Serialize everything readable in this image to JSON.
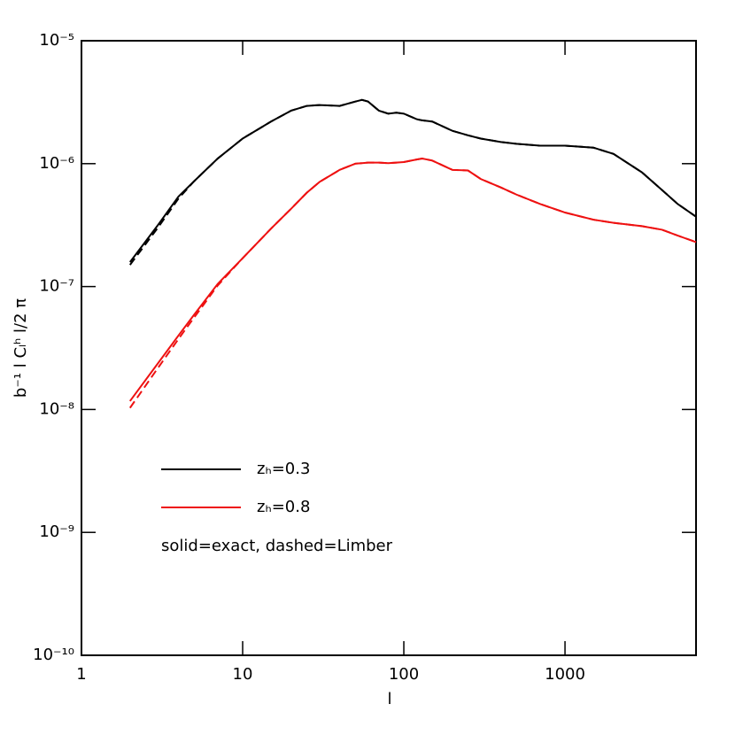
{
  "chart_data": {
    "type": "line",
    "x_label": "l",
    "y_label": "b⁻¹ l Cₗʰ l/2 π",
    "annotation": "solid=exact, dashed=Limber",
    "log_x": true,
    "log_y": true,
    "xlim": [
      1,
      6500
    ],
    "ylim": [
      1e-10,
      1e-05
    ],
    "xticks": [
      1,
      10,
      100,
      1000
    ],
    "yticks": [
      {
        "value": 1e-10,
        "label": "10⁻¹⁰"
      },
      {
        "value": 1e-09,
        "label": "10⁻⁹"
      },
      {
        "value": 1e-08,
        "label": "10⁻⁸"
      },
      {
        "value": 1e-07,
        "label": "10⁻⁷"
      },
      {
        "value": 1e-06,
        "label": "10⁻⁶"
      },
      {
        "value": 1e-05,
        "label": "10⁻⁵"
      }
    ],
    "x": [
      2,
      3,
      4,
      5,
      7,
      10,
      15,
      20,
      25,
      30,
      40,
      50,
      55,
      60,
      70,
      80,
      90,
      100,
      120,
      130,
      150,
      200,
      250,
      300,
      400,
      500,
      700,
      1000,
      1500,
      2000,
      3000,
      4000,
      5000,
      6500
    ],
    "series": [
      {
        "name": "zₕ=0.3",
        "color": "#000000",
        "values": [
          1.58e-07,
          3.2e-07,
          5.4e-07,
          7.2e-07,
          1.1e-06,
          1.6e-06,
          2.2e-06,
          2.7e-06,
          2.95e-06,
          3e-06,
          2.95e-06,
          3.2e-06,
          3.3e-06,
          3.2e-06,
          2.7e-06,
          2.55e-06,
          2.6e-06,
          2.55e-06,
          2.3e-06,
          2.25e-06,
          2.2e-06,
          1.85e-06,
          1.7e-06,
          1.6e-06,
          1.5e-06,
          1.45e-06,
          1.4e-06,
          1.4e-06,
          1.35e-06,
          1.2e-06,
          8.5e-07,
          6.1e-07,
          4.7e-07,
          3.7e-07
        ],
        "limber_values": [
          1.5e-07,
          3.05e-07,
          5.2e-07,
          7.2e-07,
          1.1e-06,
          1.6e-06,
          2.2e-06,
          2.7e-06,
          2.95e-06,
          3e-06,
          2.95e-06,
          3.2e-06,
          3.3e-06,
          3.2e-06,
          2.7e-06,
          2.55e-06,
          2.6e-06,
          2.55e-06,
          2.3e-06,
          2.25e-06,
          2.2e-06,
          1.85e-06,
          1.7e-06,
          1.6e-06,
          1.5e-06,
          1.45e-06,
          1.4e-06,
          1.4e-06,
          1.35e-06,
          1.2e-06,
          8.5e-07,
          6.1e-07,
          4.7e-07,
          3.7e-07
        ]
      },
      {
        "name": "zₕ=0.8",
        "color": "#ee1111",
        "values": [
          1.17e-08,
          2.4e-08,
          4e-08,
          5.9e-08,
          1.05e-07,
          1.7e-07,
          2.96e-07,
          4.3e-07,
          5.8e-07,
          7.1e-07,
          8.9e-07,
          1e-06,
          1.01e-06,
          1.02e-06,
          1.02e-06,
          1.01e-06,
          1.02e-06,
          1.03e-06,
          1.08e-06,
          1.1e-06,
          1.06e-06,
          8.9e-07,
          8.8e-07,
          7.5e-07,
          6.4e-07,
          5.6e-07,
          4.7e-07,
          4e-07,
          3.5e-07,
          3.3e-07,
          3.1e-07,
          2.9e-07,
          2.6e-07,
          2.3e-07
        ],
        "limber_values": [
          1.03e-08,
          2.2e-08,
          3.75e-08,
          5.6e-08,
          1.02e-07,
          1.7e-07,
          2.96e-07,
          4.3e-07,
          5.8e-07,
          7.1e-07,
          8.9e-07,
          1e-06,
          1.01e-06,
          1.02e-06,
          1.02e-06,
          1.01e-06,
          1.02e-06,
          1.03e-06,
          1.08e-06,
          1.1e-06,
          1.06e-06,
          8.9e-07,
          8.8e-07,
          7.5e-07,
          6.4e-07,
          5.6e-07,
          4.7e-07,
          4e-07,
          3.5e-07,
          3.3e-07,
          3.1e-07,
          2.9e-07,
          2.6e-07,
          2.3e-07
        ]
      }
    ]
  }
}
